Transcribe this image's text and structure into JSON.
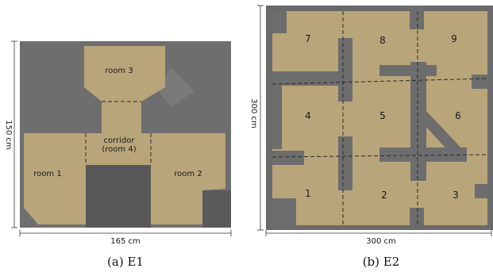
{
  "colors": {
    "floor": "#b9a57a",
    "wall": "#6d6d6d",
    "wall_dark": "#5f5f5f",
    "dash": "#2a2a2a",
    "dim_line": "#333333"
  },
  "e1": {
    "rooms": {
      "room1": "room 1",
      "room2": "room 2",
      "room3": "room 3",
      "corridor_line1": "corridor",
      "corridor_line2": "(room 4)"
    },
    "width_label": "165 cm",
    "height_label": "150 cm",
    "caption": "(a)  E1"
  },
  "e2": {
    "rooms": [
      "7",
      "8",
      "9",
      "4",
      "5",
      "6",
      "1",
      "2",
      "3"
    ],
    "width_label": "300 cm",
    "height_label": "300 cm",
    "caption": "(b)  E2"
  }
}
